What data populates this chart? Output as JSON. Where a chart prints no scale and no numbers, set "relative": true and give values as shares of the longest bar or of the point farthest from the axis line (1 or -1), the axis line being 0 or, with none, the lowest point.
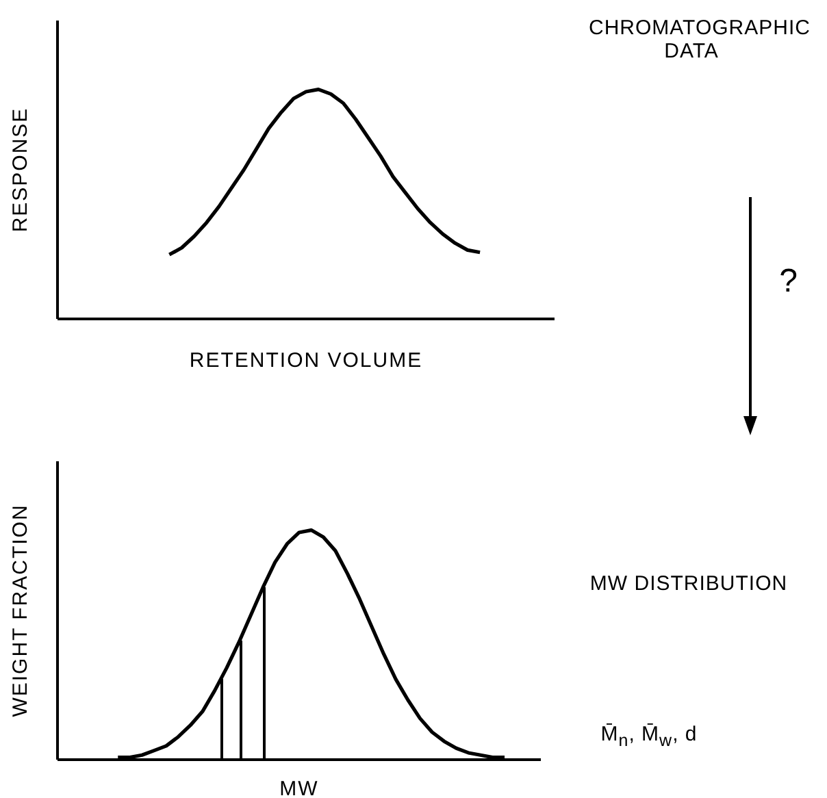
{
  "chart_data": [
    {
      "type": "line",
      "relative": true,
      "xlabel": "RETENTION VOLUME",
      "ylabel": "RESPONSE",
      "annotations": [
        "CHROMATOGRAPHIC DATA",
        "?"
      ],
      "categories": [
        null,
        null,
        null,
        null,
        null,
        null,
        null,
        null,
        null,
        null,
        null,
        null,
        null,
        null,
        null,
        null,
        null,
        null,
        null,
        null,
        null,
        null,
        null,
        null,
        null,
        null,
        null,
        null,
        null,
        null,
        null,
        null,
        null,
        null,
        null,
        null,
        null,
        null,
        null,
        null,
        null
      ],
      "series": [
        {
          "color": "#000000",
          "values": [
            null,
            null,
            null,
            null,
            null,
            null,
            null,
            null,
            null,
            0.28,
            0.31,
            0.36,
            0.42,
            0.49,
            0.57,
            0.65,
            0.74,
            0.83,
            0.9,
            0.96,
            0.99,
            1,
            0.98,
            0.94,
            0.87,
            0.79,
            0.71,
            0.62,
            0.55,
            0.48,
            0.42,
            0.37,
            0.33,
            0.3,
            0.29,
            null,
            null,
            null,
            null,
            null,
            null
          ]
        }
      ]
    },
    {
      "type": "line",
      "relative": true,
      "xlabel": "MW",
      "ylabel": "WEIGHT FRACTION",
      "annotations": [
        "MW DISTRIBUTION",
        "M̄$_{n}$, M̄$_{w}$, d"
      ],
      "categories": [
        null,
        null,
        null,
        null,
        null,
        null,
        null,
        null,
        null,
        null,
        null,
        null,
        null,
        null,
        null,
        null,
        null,
        null,
        null,
        null,
        null,
        null,
        null,
        null,
        null,
        null,
        null,
        null,
        null,
        null,
        null,
        null,
        null,
        null,
        null,
        null,
        null,
        null,
        null,
        null,
        null
      ],
      "series": [
        {
          "color": "#000000",
          "values": [
            null,
            null,
            null,
            null,
            null,
            0.01,
            0.01,
            0.02,
            0.04,
            0.06,
            0.1,
            0.15,
            0.21,
            0.3,
            0.4,
            0.51,
            0.63,
            0.75,
            0.86,
            0.94,
            0.99,
            1,
            0.97,
            0.91,
            0.81,
            0.7,
            0.58,
            0.46,
            0.35,
            0.26,
            0.18,
            0.12,
            0.08,
            0.05,
            0.03,
            0.02,
            0.01,
            0.01,
            null,
            null,
            null
          ]
        }
      ]
    }
  ]
}
